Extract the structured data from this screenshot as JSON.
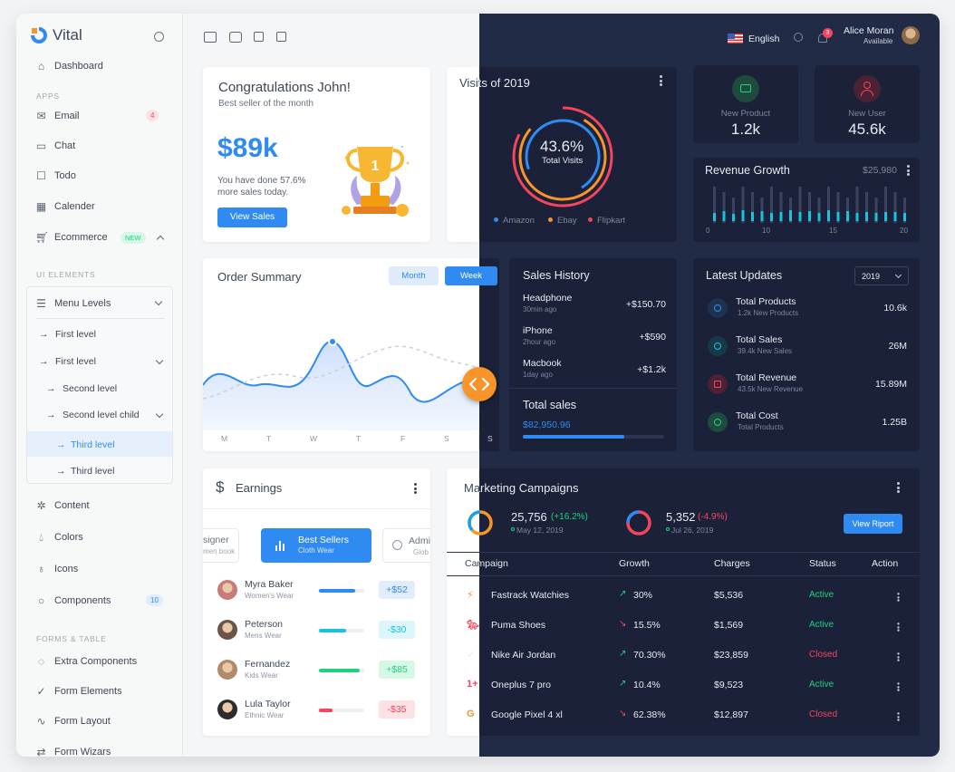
{
  "brand": {
    "name": "Vital"
  },
  "sidebar": {
    "dashboard": "Dashboard",
    "apps_title": "APPS",
    "email": "Email",
    "email_badge": "4",
    "chat": "Chat",
    "todo": "Todo",
    "calendar": "Calender",
    "ecommerce": "Ecommerce",
    "ecommerce_badge": "NEW",
    "ui_title": "UI ELEMENTS",
    "menu_levels": "Menu Levels",
    "first_level_1": "First level",
    "first_level_2": "First level",
    "second_level": "Second level",
    "second_level_child": "Second level child",
    "third_level_1": "Third level",
    "third_level_2": "Third level",
    "content": "Content",
    "colors": "Colors",
    "icons": "Icons",
    "components": "Components",
    "components_badge": "10",
    "forms_title": "FORMS & TABLE",
    "extra_components": "Extra Components",
    "form_elements": "Form Elements",
    "form_layout": "Form Layout",
    "form_wizars": "Form Wizars"
  },
  "topbar": {
    "language": "English",
    "notif_count": "3",
    "user_name": "Alice Moran",
    "user_status": "Available"
  },
  "congrats": {
    "title": "Congratulations John!",
    "subtitle": "Best seller of the month",
    "amount": "$89k",
    "desc_line1": "You have done 57.6%",
    "desc_line2": "more sales today.",
    "button": "View Sales"
  },
  "visits": {
    "title": "Visits of 2019",
    "percent": "43.6%",
    "label": "Total Visits",
    "legend": [
      "Amazon",
      "Ebay",
      "Flipkart"
    ],
    "colors": [
      "#2f8bf1",
      "#f7942a",
      "#f5455c"
    ]
  },
  "stats": {
    "new_product_label": "New Product",
    "new_product_value": "1.2k",
    "new_user_label": "New User",
    "new_user_value": "45.6k"
  },
  "revenue": {
    "title": "Revenue Growth",
    "amount": "$25,980",
    "axis": [
      "0",
      "10",
      "15",
      "20"
    ]
  },
  "order": {
    "title": "Order Summary",
    "tab_month": "Month",
    "tab_week": "Week",
    "days": [
      "M",
      "T",
      "W",
      "T",
      "F",
      "S",
      "S"
    ]
  },
  "sales_history": {
    "title": "Sales History",
    "items": [
      {
        "name": "Headphone",
        "time": "30min ago",
        "amount": "+$150.70"
      },
      {
        "name": "iPhone",
        "time": "2hour ago",
        "amount": "+$590"
      },
      {
        "name": "Macbook",
        "time": "1day ago",
        "amount": "+$1.2k"
      }
    ],
    "total_label": "Total sales",
    "total_value": "$82,950.96",
    "progress": 0.72
  },
  "updates": {
    "title": "Latest Updates",
    "year": "2019",
    "items": [
      {
        "name": "Total Products",
        "sub": "1.2k New Products",
        "value": "10.6k"
      },
      {
        "name": "Total Sales",
        "sub": "39.4k New Sales",
        "value": "26M"
      },
      {
        "name": "Total Revenue",
        "sub": "43.5k New Revenue",
        "value": "15.89M"
      },
      {
        "name": "Total Cost",
        "sub": "Total Products",
        "value": "1.25B"
      }
    ]
  },
  "earnings": {
    "title": "Earnings",
    "tab_left": "signer",
    "tab_left_sub": "men book",
    "tab_active": "Best Sellers",
    "tab_active_sub": "Cloth Wear",
    "tab_right": "Admi",
    "tab_right_sub": "Glob",
    "rows": [
      {
        "name": "Myra Baker",
        "sub": "Women's Wear",
        "value": "+$52",
        "fill": 0.8,
        "color": "#2f8bf1"
      },
      {
        "name": "Peterson",
        "sub": "Mens Wear",
        "value": "-$30",
        "fill": 0.6,
        "color": "#18c3e0"
      },
      {
        "name": "Fernandez",
        "sub": "Kids Wear",
        "value": "+$85",
        "fill": 0.9,
        "color": "#1fd17d"
      },
      {
        "name": "Lula Taylor",
        "sub": "Ethnic Wear",
        "value": "-$35",
        "fill": 0.3,
        "color": "#f5455c"
      }
    ]
  },
  "campaigns": {
    "title": "Marketing Campaigns",
    "stat1_value": "25,756",
    "stat1_change": "(+16.2%)",
    "stat1_date": "May 12, 2019",
    "stat2_value": "5,352",
    "stat2_change": "(-4.9%)",
    "stat2_date": "Jul 26, 2019",
    "button": "View Riport",
    "headers": [
      "Campaign",
      "Growth",
      "Charges",
      "Status",
      "Action"
    ],
    "rows": [
      {
        "name": "Fastrack Watchies",
        "growth": "30%",
        "up": true,
        "charges": "$5,536",
        "status": "Active"
      },
      {
        "name": "Puma Shoes",
        "growth": "15.5%",
        "up": false,
        "charges": "$1,569",
        "status": "Active"
      },
      {
        "name": "Nike Air Jordan",
        "growth": "70.30%",
        "up": true,
        "charges": "$23,859",
        "status": "Closed"
      },
      {
        "name": "Oneplus 7 pro",
        "growth": "10.4%",
        "up": true,
        "charges": "$9,523",
        "status": "Active"
      },
      {
        "name": "Google Pixel 4 xl",
        "growth": "62.38%",
        "up": false,
        "charges": "$12,897",
        "status": "Closed"
      }
    ]
  }
}
